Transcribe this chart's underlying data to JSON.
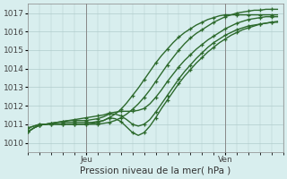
{
  "title": "",
  "xlabel": "Pression niveau de la mer( hPa )",
  "ylabel": "",
  "bg_color": "#d8eeee",
  "grid_color": "#b0cccc",
  "line_color": "#2d6a2d",
  "ylim": [
    1009.5,
    1017.5
  ],
  "xlim": [
    0,
    44
  ],
  "yticks": [
    1010,
    1011,
    1012,
    1013,
    1014,
    1015,
    1016,
    1017
  ],
  "xtick_positions": [
    10,
    34
  ],
  "xtick_labels": [
    "Jeu",
    "Ven"
  ],
  "vlines": [
    10,
    34
  ],
  "series": [
    {
      "x": [
        0,
        1,
        2,
        3,
        4,
        5,
        6,
        7,
        8,
        9,
        10,
        11,
        12,
        13,
        14,
        15,
        16,
        17,
        18,
        19,
        20,
        21,
        22,
        23,
        24,
        25,
        26,
        27,
        28,
        29,
        30,
        31,
        32,
        33,
        34,
        35,
        36,
        37,
        38,
        39,
        40,
        41,
        42,
        43
      ],
      "y": [
        1010.8,
        1010.9,
        1011.0,
        1011.0,
        1011.0,
        1011.0,
        1011.0,
        1011.0,
        1011.0,
        1011.0,
        1011.0,
        1011.0,
        1011.0,
        1011.05,
        1011.1,
        1011.2,
        1011.35,
        1011.55,
        1011.8,
        1012.1,
        1012.45,
        1012.85,
        1013.3,
        1013.75,
        1014.2,
        1014.6,
        1015.0,
        1015.35,
        1015.65,
        1015.9,
        1016.1,
        1016.3,
        1016.5,
        1016.65,
        1016.8,
        1016.9,
        1017.0,
        1017.05,
        1017.1,
        1017.15,
        1017.15,
        1017.2,
        1017.2,
        1017.2
      ]
    },
    {
      "x": [
        0,
        1,
        2,
        3,
        4,
        5,
        6,
        7,
        8,
        9,
        10,
        11,
        12,
        13,
        14,
        15,
        16,
        17,
        18,
        19,
        20,
        21,
        22,
        23,
        24,
        25,
        26,
        27,
        28,
        29,
        30,
        31,
        32,
        33,
        34,
        35,
        36,
        37,
        38,
        39,
        40,
        41,
        42,
        43
      ],
      "y": [
        1010.8,
        1010.9,
        1011.0,
        1011.0,
        1011.0,
        1011.0,
        1011.0,
        1011.0,
        1011.0,
        1011.0,
        1011.0,
        1011.05,
        1011.1,
        1011.2,
        1011.35,
        1011.55,
        1011.8,
        1012.15,
        1012.55,
        1012.95,
        1013.4,
        1013.85,
        1014.3,
        1014.7,
        1015.05,
        1015.4,
        1015.7,
        1015.95,
        1016.15,
        1016.35,
        1016.5,
        1016.65,
        1016.75,
        1016.85,
        1016.9,
        1016.9,
        1016.9,
        1016.9,
        1016.9,
        1016.9,
        1016.9,
        1016.9,
        1016.9,
        1016.9
      ]
    },
    {
      "x": [
        0,
        1,
        2,
        3,
        4,
        5,
        6,
        7,
        8,
        9,
        10,
        11,
        12,
        13,
        14,
        15,
        16,
        17,
        18,
        19,
        20,
        21,
        22,
        23,
        24,
        25,
        26,
        27,
        28,
        29,
        30,
        31,
        32,
        33,
        34,
        35,
        36,
        37,
        38,
        39,
        40,
        41,
        42,
        43
      ],
      "y": [
        1010.6,
        1010.8,
        1010.95,
        1011.0,
        1011.05,
        1011.1,
        1011.1,
        1011.1,
        1011.1,
        1011.1,
        1011.1,
        1011.1,
        1011.15,
        1011.2,
        1011.35,
        1011.3,
        1011.15,
        1010.85,
        1010.55,
        1010.4,
        1010.55,
        1010.9,
        1011.35,
        1011.85,
        1012.3,
        1012.75,
        1013.2,
        1013.6,
        1013.95,
        1014.3,
        1014.6,
        1014.9,
        1015.15,
        1015.4,
        1015.6,
        1015.8,
        1015.95,
        1016.1,
        1016.2,
        1016.3,
        1016.4,
        1016.45,
        1016.5,
        1016.55
      ]
    },
    {
      "x": [
        0,
        1,
        2,
        3,
        4,
        5,
        6,
        7,
        8,
        9,
        10,
        11,
        12,
        13,
        14,
        15,
        16,
        17,
        18,
        19,
        20,
        21,
        22,
        23,
        24,
        25,
        26,
        27,
        28,
        29,
        30,
        31,
        32,
        33,
        34,
        35,
        36,
        37,
        38,
        39,
        40,
        41,
        42,
        43
      ],
      "y": [
        1010.6,
        1010.8,
        1010.95,
        1011.0,
        1011.05,
        1011.1,
        1011.15,
        1011.2,
        1011.2,
        1011.2,
        1011.2,
        1011.25,
        1011.3,
        1011.4,
        1011.55,
        1011.55,
        1011.45,
        1011.25,
        1011.0,
        1010.9,
        1011.0,
        1011.25,
        1011.65,
        1012.1,
        1012.55,
        1013.0,
        1013.45,
        1013.85,
        1014.2,
        1014.55,
        1014.85,
        1015.15,
        1015.4,
        1015.6,
        1015.8,
        1015.95,
        1016.1,
        1016.2,
        1016.3,
        1016.35,
        1016.4,
        1016.45,
        1016.5,
        1016.5
      ]
    },
    {
      "x": [
        0,
        1,
        2,
        3,
        4,
        5,
        6,
        7,
        8,
        9,
        10,
        11,
        12,
        13,
        14,
        15,
        16,
        17,
        18,
        19,
        20,
        21,
        22,
        23,
        24,
        25,
        26,
        27,
        28,
        29,
        30,
        31,
        32,
        33,
        34,
        35,
        36,
        37,
        38,
        39,
        40,
        41,
        42,
        43
      ],
      "y": [
        1010.6,
        1010.8,
        1010.95,
        1011.0,
        1011.05,
        1011.1,
        1011.15,
        1011.2,
        1011.25,
        1011.3,
        1011.35,
        1011.4,
        1011.45,
        1011.5,
        1011.6,
        1011.65,
        1011.7,
        1011.7,
        1011.7,
        1011.75,
        1011.85,
        1012.1,
        1012.45,
        1012.85,
        1013.3,
        1013.7,
        1014.1,
        1014.45,
        1014.75,
        1015.05,
        1015.3,
        1015.55,
        1015.75,
        1015.95,
        1016.15,
        1016.3,
        1016.45,
        1016.55,
        1016.65,
        1016.7,
        1016.75,
        1016.8,
        1016.8,
        1016.8
      ]
    }
  ],
  "marker_size": 3.5,
  "line_width": 1.0
}
